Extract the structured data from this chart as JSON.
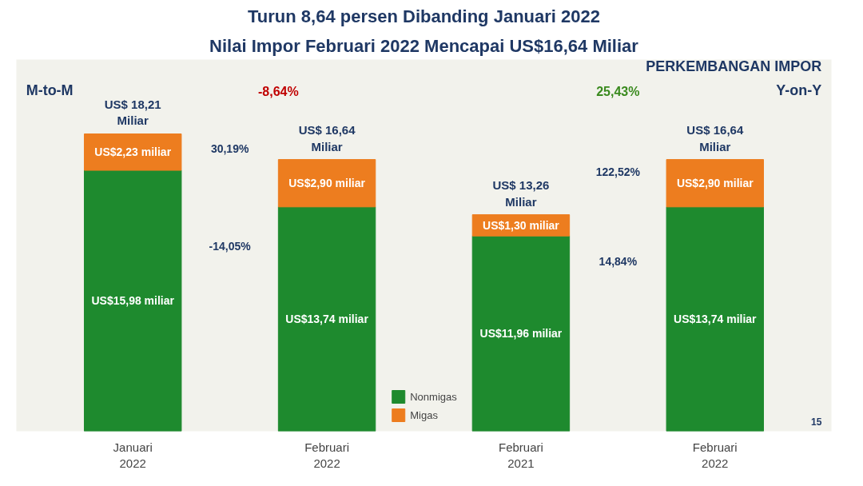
{
  "chart_data": {
    "type": "bar",
    "title": "Nilai Impor Februari 2022 Mencapai US$16,64 Miliar",
    "subtitle": "Turun 8,64 persen Dibanding Januari 2022",
    "categories": [
      "Januari 2022",
      "Februari 2022",
      "Februari 2021",
      "Februari 2022"
    ],
    "stacked": true,
    "tick_labels": "x",
    "legend": "bottom",
    "series": [
      {
        "name": "Nonmigas",
        "color": "#1e8a2e",
        "values": [
          15.98,
          13.74,
          11.96,
          13.74
        ],
        "value_labels": [
          "US$15,98 miliar",
          "US$13,74 miliar",
          "US$11,96 miliar",
          "US$13,74 miliar"
        ]
      },
      {
        "name": "Migas",
        "color": "#ed7d1f",
        "values": [
          2.23,
          2.9,
          1.3,
          2.9
        ],
        "value_labels": [
          "US$2,23 miliar",
          "US$2,90 miliar",
          "US$1,30 miliar",
          "US$2,90 miliar"
        ]
      }
    ],
    "totals": [
      "US$ 18,21 Miliar",
      "US$ 16,64 Miliar",
      "US$ 13,26 Miliar",
      "US$ 16,64 Miliar"
    ],
    "annotations": [
      "PERKEMBANGAN IMPOR",
      "M-to-M",
      "-8,64%",
      "30,19%",
      "-14,05%",
      "Y-on-Y",
      "25,43%",
      "122,52%",
      "14,84%",
      "15"
    ]
  }
}
